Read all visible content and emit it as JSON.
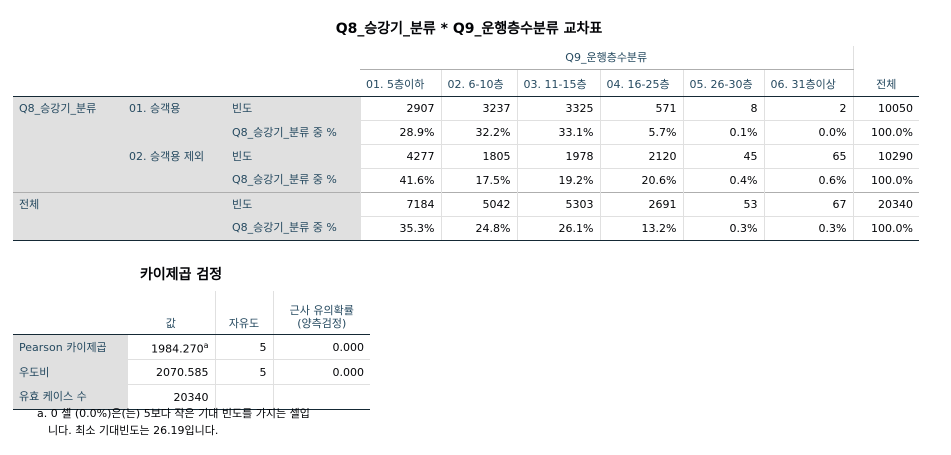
{
  "crosstab": {
    "title": "Q8_승강기_분류 * Q9_운행층수분류 교차표",
    "col_group_label": "Q9_운행층수분류",
    "columns": [
      "01. 5층이하",
      "02. 6-10층",
      "03. 11-15층",
      "04. 16-25층",
      "05. 26-30층",
      "06. 31층이상",
      "전체"
    ],
    "row_var_label": "Q8_승강기_분류",
    "stat_labels": {
      "count": "빈도",
      "pct": "Q8_승강기_분류 중 %"
    },
    "groups": [
      {
        "label": "01. 승객용",
        "count": [
          "2907",
          "3237",
          "3325",
          "571",
          "8",
          "2",
          "10050"
        ],
        "pct": [
          "28.9%",
          "32.2%",
          "33.1%",
          "5.7%",
          "0.1%",
          "0.0%",
          "100.0%"
        ]
      },
      {
        "label": "02. 승객용 제외",
        "count": [
          "4277",
          "1805",
          "1978",
          "2120",
          "45",
          "65",
          "10290"
        ],
        "pct": [
          "41.6%",
          "17.5%",
          "19.2%",
          "20.6%",
          "0.4%",
          "0.6%",
          "100.0%"
        ]
      }
    ],
    "total": {
      "label": "전체",
      "count": [
        "7184",
        "5042",
        "5303",
        "2691",
        "53",
        "67",
        "20340"
      ],
      "pct": [
        "35.3%",
        "24.8%",
        "26.1%",
        "13.2%",
        "0.3%",
        "0.3%",
        "100.0%"
      ]
    }
  },
  "chisq": {
    "title": "카이제곱 검정",
    "headers": [
      "값",
      "자유도",
      "근사 유의확률\n(양측검정)"
    ],
    "header_sig_line1": "근사 유의확률",
    "header_sig_line2": "(양측검정)",
    "rows": [
      {
        "label": "Pearson 카이제곱",
        "value": "1984.270",
        "sup": "a",
        "df": "5",
        "sig": "0.000"
      },
      {
        "label": "우도비",
        "value": "2070.585",
        "sup": "",
        "df": "5",
        "sig": "0.000"
      },
      {
        "label": "유효 케이스 수",
        "value": "20340",
        "sup": "",
        "df": "",
        "sig": ""
      }
    ],
    "footnote_line1": "a. 0 셀 (0.0%)은(는) 5보다 작은 기대 빈도를 가지는 셀입",
    "footnote_line2": "니다. 최소 기대빈도는 26.19입니다."
  }
}
